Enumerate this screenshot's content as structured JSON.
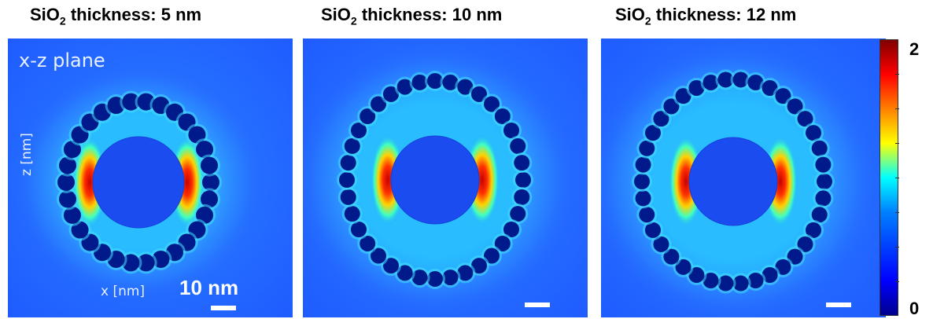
{
  "panels": [
    {
      "title_prefix": "SiO",
      "title_sub": "2",
      "title_suffix": " thickness: 5 nm",
      "shell_gap": "small"
    },
    {
      "title_prefix": "SiO",
      "title_sub": "2",
      "title_suffix": " thickness: 10 nm",
      "shell_gap": "medium"
    },
    {
      "title_prefix": "SiO",
      "title_sub": "2",
      "title_suffix": " thickness: 12 nm",
      "shell_gap": "large"
    }
  ],
  "labels": {
    "plane": "x-z plane",
    "z_axis": "z [nm]",
    "x_axis": "x [nm]",
    "scale": "10 nm"
  },
  "colorbar": {
    "max": "2",
    "min": "0",
    "colormap": "jet"
  },
  "colors": {
    "background_field": "#1f5cff",
    "core": "#1a4cf0",
    "particle": "#001a8c"
  }
}
